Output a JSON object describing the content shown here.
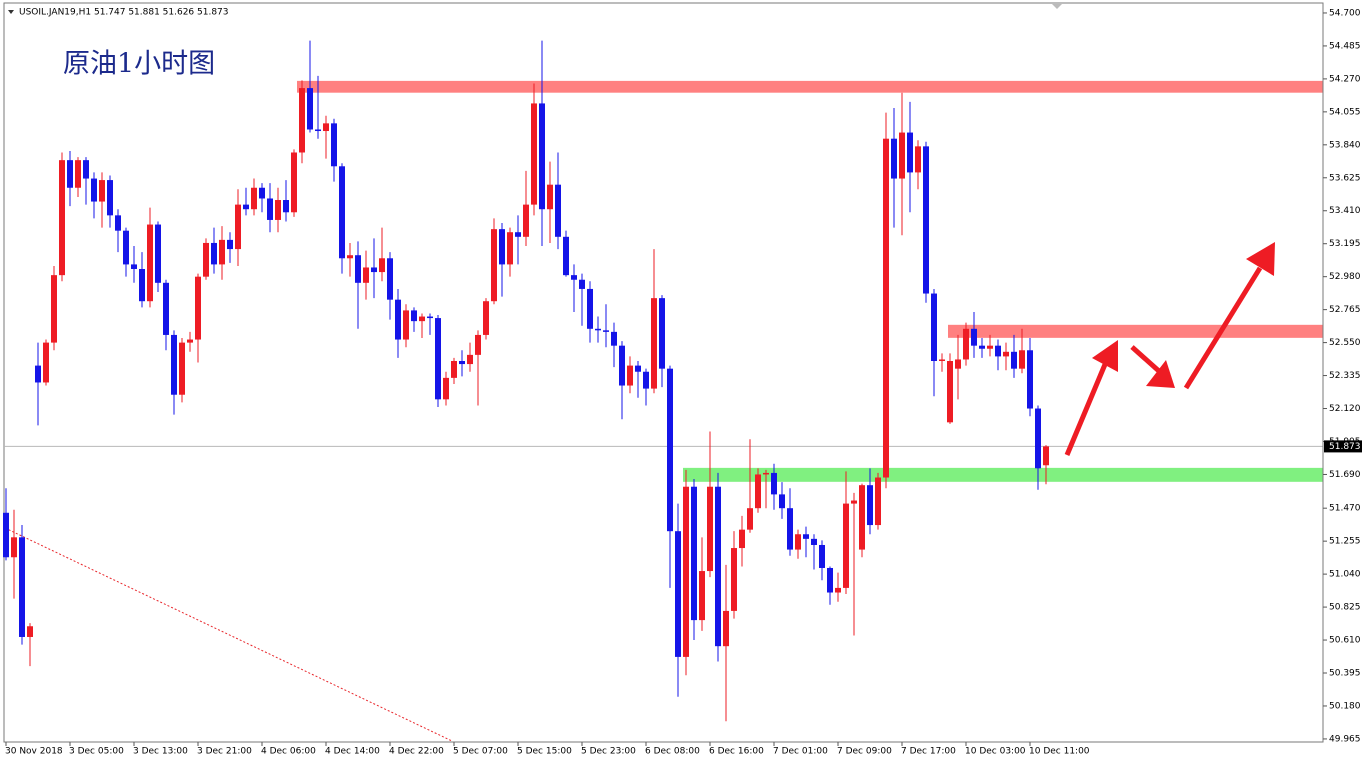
{
  "chart_data": {
    "type": "candlestick",
    "title": "USOIL.JAN19,H1  51.747 51.881 51.626 51.873",
    "annotation": "原油1小时图",
    "up_color": "#ee1c24",
    "down_color": "#1414e8",
    "ylim": [
      49.945,
      54.765
    ],
    "yticks": [
      {
        "value": 54.7,
        "label": "54.700"
      },
      54.485,
      {
        "value": 54.27,
        "label": "54.270"
      },
      54.055,
      {
        "value": 53.84,
        "label": "53.840"
      },
      53.625,
      {
        "value": 53.41,
        "label": "53.410"
      },
      53.195,
      {
        "value": 52.98,
        "label": "52.980"
      },
      52.765,
      {
        "value": 52.55,
        "label": "52.550"
      },
      52.335,
      {
        "value": 52.12,
        "label": "52.120"
      },
      51.905,
      {
        "value": 51.69,
        "label": "51.690"
      },
      {
        "value": 51.47,
        "label": "51.470"
      },
      51.255,
      {
        "value": 51.04,
        "label": "51.040"
      },
      50.825,
      {
        "value": 50.61,
        "label": "50.610"
      },
      50.395,
      {
        "value": 50.18,
        "label": "50.180"
      },
      49.965
    ],
    "current_price": 51.873,
    "x_labels": [
      "30 Nov 2018",
      "3 Dec 05:00",
      "3 Dec 13:00",
      "3 Dec 21:00",
      "4 Dec 06:00",
      "4 Dec 14:00",
      "4 Dec 22:00",
      "5 Dec 07:00",
      "5 Dec 15:00",
      "5 Dec 23:00",
      "6 Dec 08:00",
      "6 Dec 16:00",
      "7 Dec 01:00",
      "7 Dec 09:00",
      "7 Dec 17:00",
      "10 Dec 03:00",
      "10 Dec 11:00"
    ],
    "zones": [
      {
        "from": 54.18,
        "to": 54.257,
        "color": "#ff8080"
      },
      {
        "from": 52.581,
        "to": 52.666,
        "color": "#ff8080"
      },
      {
        "from": 51.642,
        "to": 51.733,
        "color": "#80f080"
      }
    ],
    "ohlc": [
      [
        51.44,
        51.6,
        51.13,
        51.15
      ],
      [
        51.15,
        51.46,
        50.88,
        51.28
      ],
      [
        51.28,
        51.36,
        50.58,
        50.63
      ],
      [
        50.63,
        50.72,
        50.44,
        50.7
      ],
      [
        52.4,
        52.55,
        52.01,
        52.29
      ],
      [
        52.29,
        52.57,
        52.27,
        52.55
      ],
      [
        52.55,
        53.05,
        52.5,
        52.99
      ],
      [
        52.99,
        53.79,
        52.95,
        53.74
      ],
      [
        53.74,
        53.8,
        53.44,
        53.56
      ],
      [
        53.56,
        53.76,
        53.5,
        53.74
      ],
      [
        53.74,
        53.76,
        53.45,
        53.62
      ],
      [
        53.62,
        53.66,
        53.36,
        53.47
      ],
      [
        53.47,
        53.66,
        53.3,
        53.61
      ],
      [
        53.61,
        53.64,
        53.3,
        53.38
      ],
      [
        53.38,
        53.42,
        53.14,
        53.28
      ],
      [
        53.28,
        53.3,
        52.98,
        53.06
      ],
      [
        53.06,
        53.18,
        52.94,
        53.03
      ],
      [
        53.03,
        53.14,
        52.78,
        52.82
      ],
      [
        52.82,
        53.43,
        52.78,
        53.32
      ],
      [
        53.32,
        53.34,
        52.88,
        52.94
      ],
      [
        52.94,
        52.96,
        52.5,
        52.6
      ],
      [
        52.6,
        52.63,
        52.08,
        52.21
      ],
      [
        52.21,
        52.58,
        52.16,
        52.55
      ],
      [
        52.55,
        52.62,
        52.49,
        52.57
      ],
      [
        52.57,
        53.0,
        52.42,
        52.98
      ],
      [
        52.98,
        53.23,
        52.96,
        53.2
      ],
      [
        53.2,
        53.3,
        53.0,
        53.06
      ],
      [
        53.06,
        53.31,
        52.96,
        53.22
      ],
      [
        53.22,
        53.27,
        53.07,
        53.16
      ],
      [
        53.16,
        53.55,
        53.05,
        53.45
      ],
      [
        53.45,
        53.56,
        53.38,
        53.42
      ],
      [
        53.42,
        53.62,
        53.38,
        53.56
      ],
      [
        53.56,
        53.59,
        53.4,
        53.49
      ],
      [
        53.49,
        53.59,
        53.27,
        53.35
      ],
      [
        53.35,
        53.56,
        53.27,
        53.48
      ],
      [
        53.48,
        53.61,
        53.34,
        53.4
      ],
      [
        53.4,
        53.81,
        53.37,
        53.79
      ],
      [
        53.79,
        54.26,
        53.72,
        54.21
      ],
      [
        54.21,
        54.52,
        53.92,
        53.94
      ],
      [
        53.94,
        54.29,
        53.88,
        53.93
      ],
      [
        53.93,
        54.03,
        53.75,
        53.98
      ],
      [
        53.98,
        54.01,
        53.6,
        53.7
      ],
      [
        53.7,
        53.72,
        53.0,
        53.1
      ],
      [
        53.1,
        53.2,
        52.98,
        53.12
      ],
      [
        53.12,
        53.21,
        52.64,
        52.94
      ],
      [
        52.94,
        53.15,
        52.83,
        53.04
      ],
      [
        53.04,
        53.23,
        52.84,
        53.01
      ],
      [
        53.01,
        53.3,
        52.95,
        53.1
      ],
      [
        53.1,
        53.14,
        52.7,
        52.83
      ],
      [
        52.83,
        52.9,
        52.45,
        52.57
      ],
      [
        52.57,
        52.8,
        52.52,
        52.76
      ],
      [
        52.76,
        52.78,
        52.62,
        52.69
      ],
      [
        52.69,
        52.74,
        52.58,
        52.72
      ],
      [
        52.72,
        52.74,
        52.6,
        52.71
      ],
      [
        52.71,
        52.73,
        52.13,
        52.18
      ],
      [
        52.18,
        52.36,
        52.14,
        52.32
      ],
      [
        52.32,
        52.45,
        52.28,
        52.43
      ],
      [
        52.43,
        52.5,
        52.33,
        52.41
      ],
      [
        52.41,
        52.55,
        52.36,
        52.47
      ],
      [
        52.47,
        52.63,
        52.14,
        52.6
      ],
      [
        52.6,
        52.84,
        52.57,
        52.82
      ],
      [
        52.82,
        53.36,
        52.8,
        53.29
      ],
      [
        53.29,
        53.33,
        52.85,
        53.06
      ],
      [
        53.06,
        53.3,
        52.98,
        53.27
      ],
      [
        53.27,
        53.38,
        53.06,
        53.24
      ],
      [
        53.24,
        53.67,
        53.18,
        53.45
      ],
      [
        53.45,
        54.24,
        53.38,
        54.11
      ],
      [
        54.11,
        54.52,
        53.18,
        53.42
      ],
      [
        53.42,
        53.73,
        53.2,
        53.58
      ],
      [
        53.58,
        53.79,
        53.16,
        53.24
      ],
      [
        53.24,
        53.28,
        52.98,
        52.99
      ],
      [
        52.99,
        53.06,
        52.75,
        52.96
      ],
      [
        52.96,
        53.0,
        52.66,
        52.9
      ],
      [
        52.9,
        52.95,
        52.55,
        52.64
      ],
      [
        52.64,
        52.72,
        52.55,
        52.63
      ],
      [
        52.63,
        52.8,
        52.52,
        52.62
      ],
      [
        52.62,
        52.68,
        52.39,
        52.53
      ],
      [
        52.53,
        52.56,
        52.05,
        52.27
      ],
      [
        52.27,
        52.46,
        52.22,
        52.4
      ],
      [
        52.4,
        52.43,
        52.19,
        52.36
      ],
      [
        52.36,
        52.38,
        52.14,
        52.25
      ],
      [
        52.25,
        53.16,
        52.22,
        52.84
      ],
      [
        52.84,
        52.86,
        52.26,
        52.38
      ],
      [
        52.38,
        52.4,
        50.95,
        51.32
      ],
      [
        51.32,
        51.5,
        50.24,
        50.5
      ],
      [
        50.5,
        51.72,
        50.38,
        51.61
      ],
      [
        51.61,
        51.66,
        50.61,
        50.74
      ],
      [
        50.74,
        51.28,
        50.67,
        51.06
      ],
      [
        51.06,
        51.97,
        51.02,
        51.61
      ],
      [
        51.61,
        51.7,
        50.47,
        50.57
      ],
      [
        50.57,
        51.1,
        50.08,
        50.8
      ],
      [
        50.8,
        51.32,
        50.75,
        51.21
      ],
      [
        51.21,
        51.42,
        51.09,
        51.33
      ],
      [
        51.33,
        51.92,
        51.31,
        51.47
      ],
      [
        51.47,
        51.73,
        51.44,
        51.69
      ],
      [
        51.69,
        51.72,
        51.47,
        51.7
      ],
      [
        51.7,
        51.76,
        51.46,
        51.56
      ],
      [
        51.56,
        51.64,
        51.4,
        51.47
      ],
      [
        51.47,
        51.6,
        51.16,
        51.2
      ],
      [
        51.2,
        51.33,
        51.14,
        51.3
      ],
      [
        51.3,
        51.35,
        51.15,
        51.27
      ],
      [
        51.27,
        51.3,
        51.07,
        51.23
      ],
      [
        51.23,
        51.26,
        51.0,
        51.08
      ],
      [
        51.08,
        51.09,
        50.84,
        50.92
      ],
      [
        50.92,
        51.05,
        50.86,
        50.95
      ],
      [
        50.95,
        51.71,
        50.91,
        51.5
      ],
      [
        51.5,
        51.57,
        50.64,
        51.52
      ],
      [
        51.2,
        51.63,
        51.15,
        51.62
      ],
      [
        51.62,
        51.73,
        51.3,
        51.36
      ],
      [
        51.36,
        51.7,
        51.33,
        51.67
      ],
      [
        51.67,
        54.05,
        51.6,
        53.88
      ],
      [
        53.88,
        54.08,
        53.3,
        53.62
      ],
      [
        53.62,
        54.18,
        53.25,
        53.92
      ],
      [
        53.92,
        54.12,
        53.4,
        53.66
      ],
      [
        53.66,
        53.87,
        53.55,
        53.83
      ],
      [
        53.83,
        53.86,
        52.81,
        52.87
      ],
      [
        52.87,
        52.9,
        52.2,
        52.43
      ],
      [
        52.43,
        52.48,
        52.36,
        52.44
      ],
      [
        52.03,
        52.48,
        52.02,
        52.43
      ],
      [
        52.38,
        52.6,
        52.18,
        52.44
      ],
      [
        52.44,
        52.68,
        52.4,
        52.64
      ],
      [
        52.64,
        52.75,
        52.45,
        52.53
      ],
      [
        52.53,
        52.58,
        52.45,
        52.51
      ],
      [
        52.51,
        52.6,
        52.46,
        52.53
      ],
      [
        52.53,
        52.57,
        52.37,
        52.46
      ],
      [
        52.46,
        52.55,
        52.37,
        52.49
      ],
      [
        52.49,
        52.6,
        52.32,
        52.38
      ],
      [
        52.38,
        52.64,
        52.35,
        52.5
      ],
      [
        52.5,
        52.58,
        52.07,
        52.12
      ],
      [
        52.12,
        52.14,
        51.59,
        51.73
      ],
      [
        51.75,
        51.881,
        51.626,
        51.873
      ]
    ]
  }
}
